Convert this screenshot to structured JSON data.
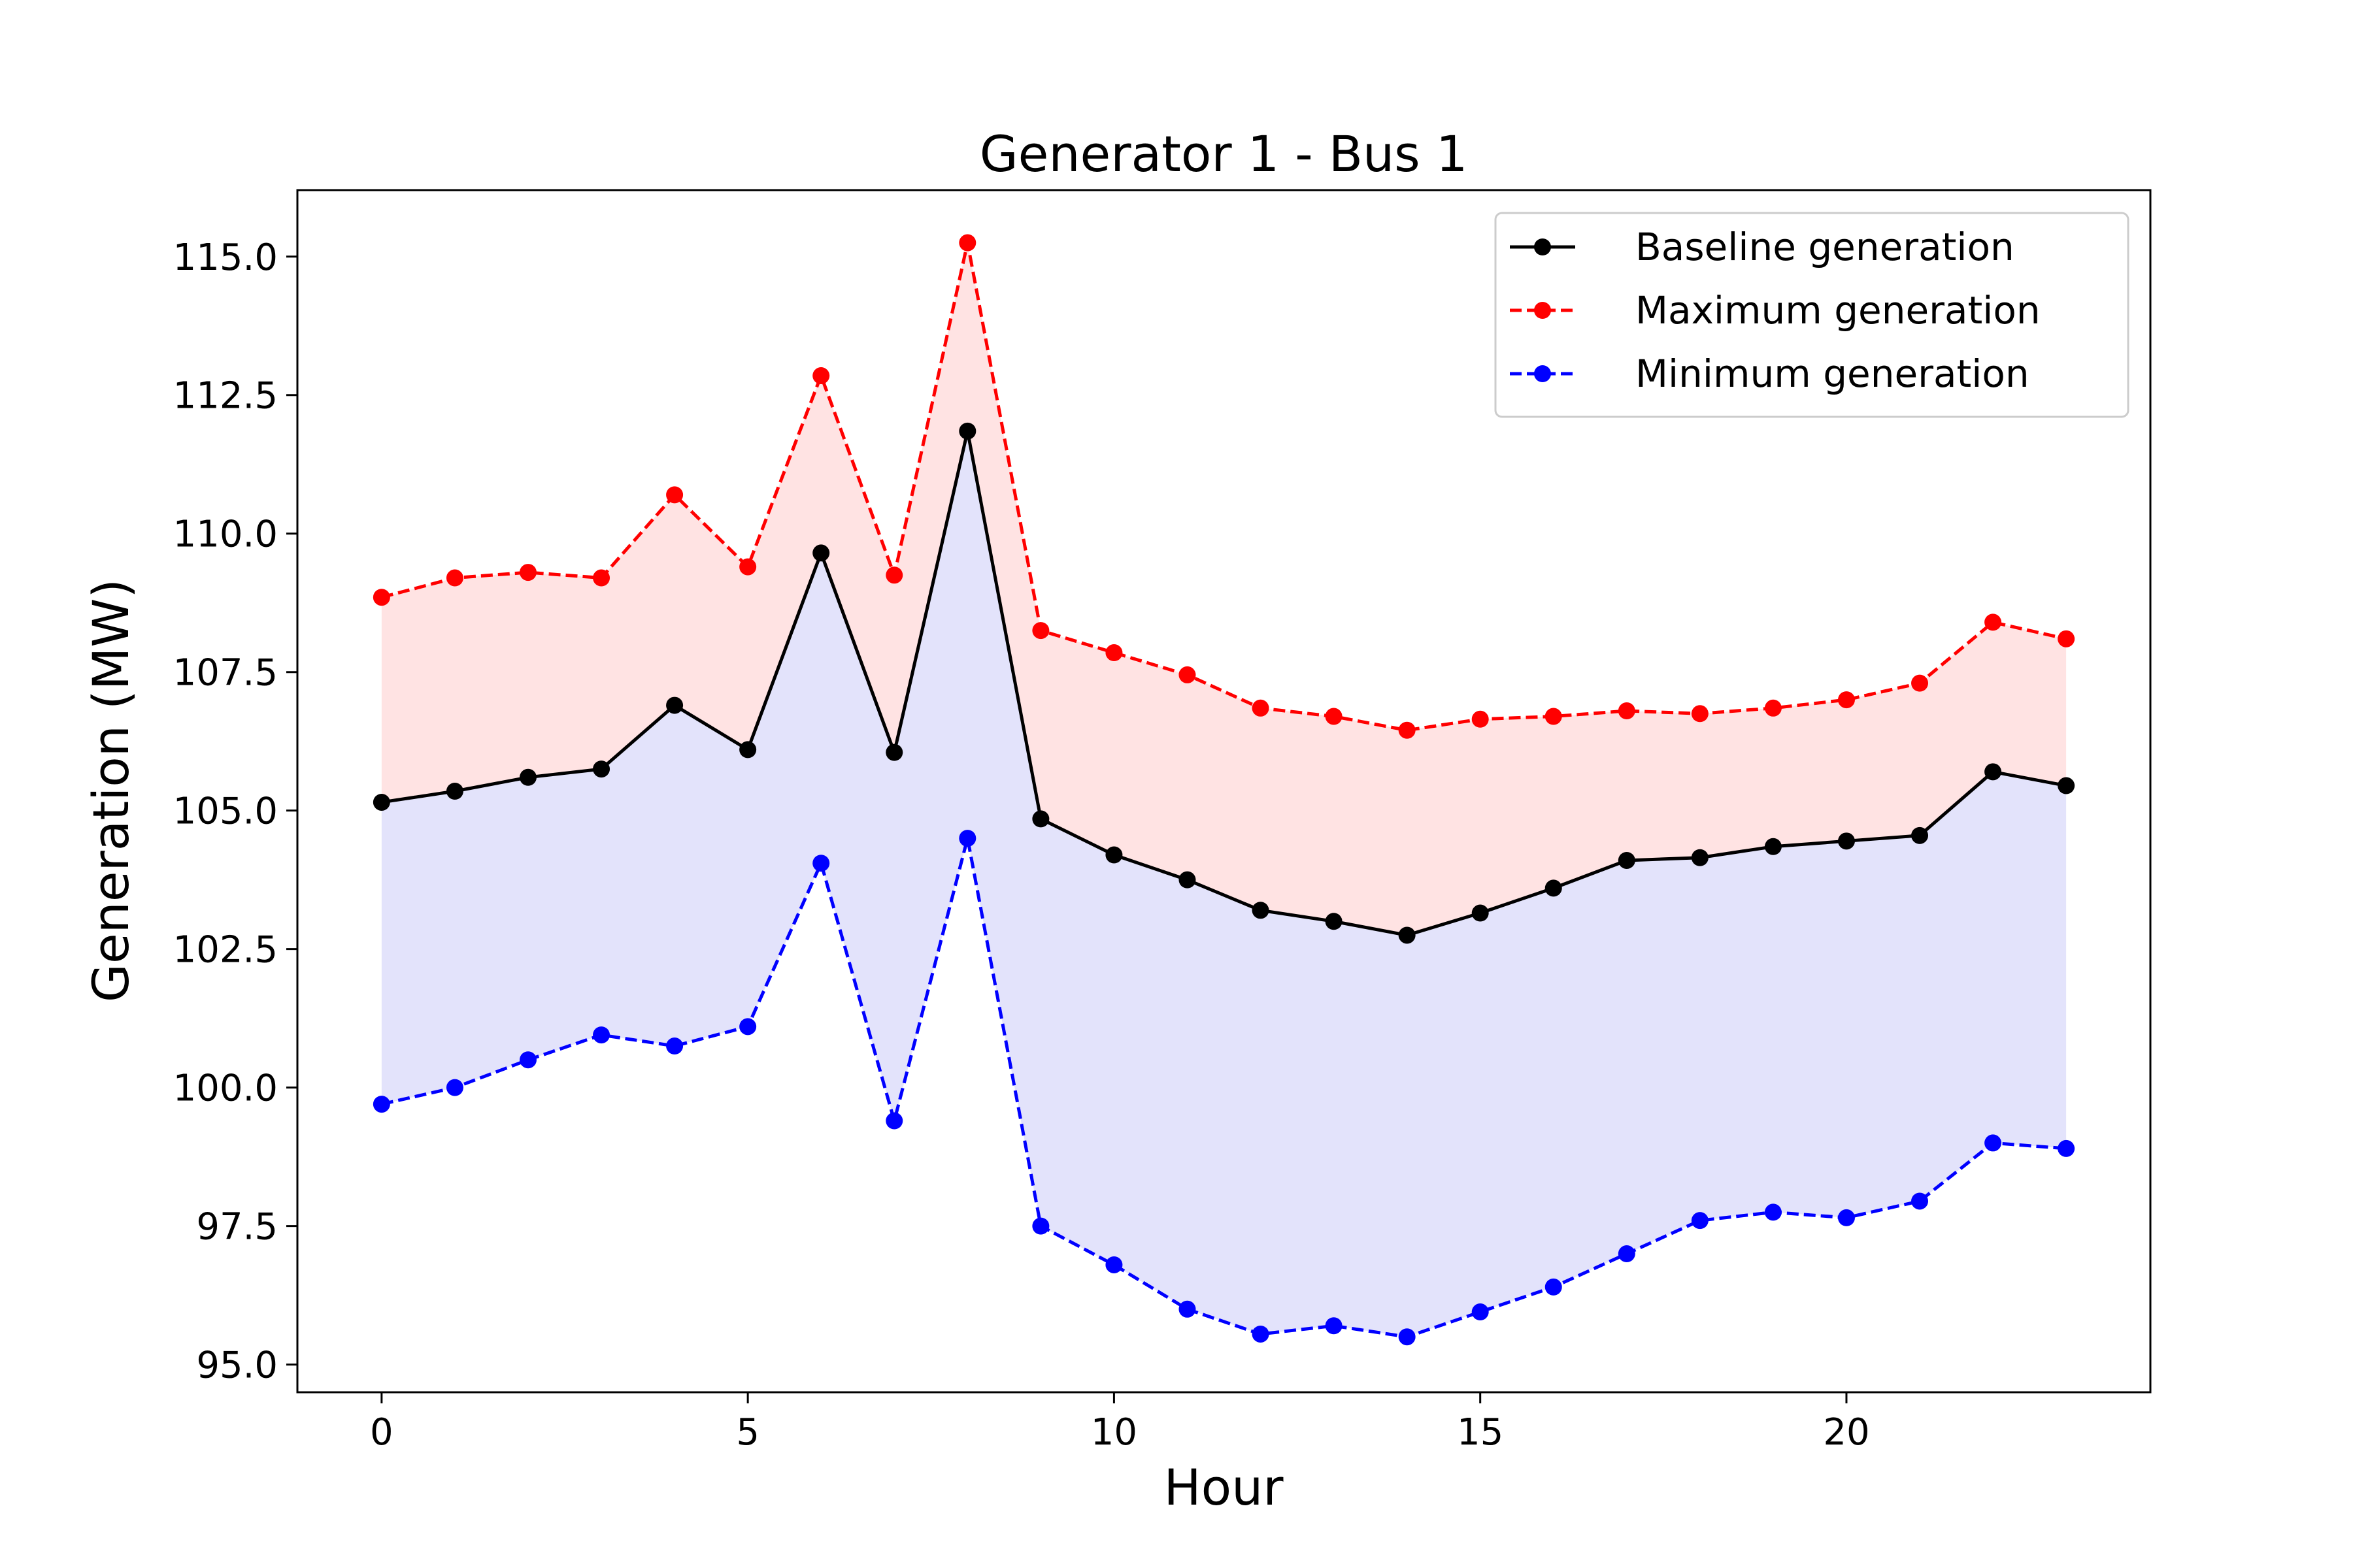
{
  "chart_data": {
    "type": "line",
    "title": "Generator 1 - Bus 1",
    "xlabel": "Hour",
    "ylabel": "Generation (MW)",
    "xlim": [
      -1.15,
      24.15
    ],
    "ylim": [
      94.5,
      116.2
    ],
    "xticks": [
      0,
      5,
      10,
      15,
      20
    ],
    "xtick_labels": [
      "0",
      "5",
      "10",
      "15",
      "20"
    ],
    "yticks": [
      95,
      97.5,
      100,
      102.5,
      105,
      107.5,
      110,
      112.5,
      115
    ],
    "ytick_labels": [
      "95.0",
      "97.5",
      "100.0",
      "102.5",
      "105.0",
      "107.5",
      "110.0",
      "112.5",
      "115.0"
    ],
    "grid": false,
    "legend_position": "upper right",
    "x": [
      0,
      1,
      2,
      3,
      4,
      5,
      6,
      7,
      8,
      9,
      10,
      11,
      12,
      13,
      14,
      15,
      16,
      17,
      18,
      19,
      20,
      21,
      22,
      23
    ],
    "series": [
      {
        "name": "Baseline generation",
        "color": "#000000",
        "linestyle": "solid",
        "values": [
          105.15,
          105.35,
          105.6,
          105.75,
          106.9,
          106.1,
          109.65,
          106.05,
          111.85,
          104.85,
          104.2,
          103.75,
          103.2,
          103.0,
          102.75,
          103.15,
          103.6,
          104.1,
          104.15,
          104.35,
          104.45,
          104.55,
          105.7,
          105.45
        ]
      },
      {
        "name": "Maximum generation",
        "color": "#ff0000",
        "linestyle": "dashed",
        "values": [
          108.85,
          109.2,
          109.3,
          109.2,
          110.7,
          109.4,
          112.85,
          109.25,
          115.25,
          108.25,
          107.85,
          107.45,
          106.85,
          106.7,
          106.45,
          106.65,
          106.7,
          106.8,
          106.75,
          106.85,
          107.0,
          107.3,
          108.4,
          108.1
        ]
      },
      {
        "name": "Minimum generation",
        "color": "#0000ff",
        "linestyle": "dashed",
        "values": [
          99.7,
          100.0,
          100.5,
          100.95,
          100.75,
          101.1,
          104.05,
          99.4,
          104.5,
          97.5,
          96.8,
          96.0,
          95.55,
          95.7,
          95.5,
          95.95,
          96.4,
          97.0,
          97.6,
          97.75,
          97.65,
          97.95,
          99.0,
          98.9
        ]
      }
    ],
    "fills": [
      {
        "between": [
          "Baseline generation",
          "Maximum generation"
        ],
        "color": "#ffe3e3"
      },
      {
        "between": [
          "Minimum generation",
          "Baseline generation"
        ],
        "color": "#e3e3fb"
      }
    ]
  }
}
